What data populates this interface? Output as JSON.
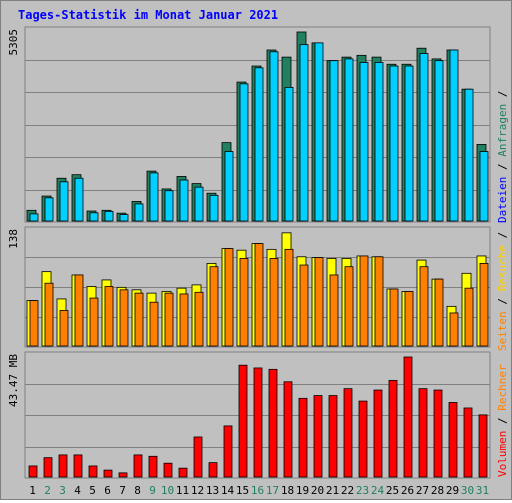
{
  "chart_data": [
    {
      "type": "bar",
      "title": "Tages-Statistik im Monat Januar 2021",
      "categories": [
        "1",
        "2",
        "3",
        "4",
        "5",
        "6",
        "7",
        "8",
        "9",
        "10",
        "11",
        "12",
        "13",
        "14",
        "15",
        "16",
        "17",
        "18",
        "19",
        "20",
        "21",
        "22",
        "23",
        "24",
        "25",
        "26",
        "27",
        "28",
        "29",
        "30",
        "31"
      ],
      "weekend_days": [
        "2",
        "3",
        "9",
        "10",
        "16",
        "17",
        "23",
        "24",
        "30",
        "31"
      ],
      "ylim": [
        0,
        5305
      ],
      "ylabel": "5305",
      "right_label": [
        "Anfragen",
        "Dateien"
      ],
      "series": [
        {
          "name": "Anfragen",
          "color": "#208060",
          "values": [
            300,
            700,
            1200,
            1300,
            280,
            300,
            220,
            550,
            1400,
            900,
            1250,
            1050,
            780,
            2200,
            3900,
            4350,
            4800,
            4600,
            5305,
            5000,
            4500,
            4600,
            4650,
            4600,
            4400,
            4400,
            4850,
            4550,
            4800,
            3700,
            2150
          ]
        },
        {
          "name": "Dateien",
          "color": "#00d0ff",
          "values": [
            200,
            650,
            1100,
            1200,
            230,
            270,
            180,
            480,
            1350,
            850,
            1150,
            950,
            720,
            1950,
            3850,
            4300,
            4750,
            3750,
            4950,
            5000,
            4500,
            4550,
            4450,
            4450,
            4350,
            4350,
            4700,
            4500,
            4800,
            3700,
            1950
          ]
        }
      ]
    },
    {
      "type": "bar",
      "ylim": [
        0,
        138
      ],
      "ylabel": "138",
      "right_label": [
        "Besuche",
        "Seiten"
      ],
      "series": [
        {
          "name": "Besuche",
          "color": "#ffff00",
          "values": [
            55,
            90,
            57,
            86,
            72,
            80,
            71,
            68,
            64,
            66,
            70,
            74,
            100,
            118,
            116,
            124,
            117,
            137,
            108,
            107,
            106,
            106,
            109,
            108,
            69,
            66,
            104,
            81,
            48,
            88,
            109
          ]
        },
        {
          "name": "Seiten",
          "color": "#ff8000",
          "values": [
            55,
            76,
            43,
            86,
            58,
            72,
            68,
            64,
            53,
            64,
            63,
            65,
            96,
            118,
            106,
            124,
            106,
            117,
            98,
            107,
            86,
            96,
            109,
            108,
            69,
            66,
            96,
            81,
            40,
            70,
            100
          ]
        }
      ]
    },
    {
      "type": "bar",
      "ylim": [
        0,
        43.47
      ],
      "ylabel": "43.47 MB",
      "right_label": [
        "Volumen",
        "Rechner"
      ],
      "series": [
        {
          "name": "Volumen",
          "color": "#ff0000",
          "values": [
            4,
            7,
            8,
            8,
            4,
            2.5,
            1.5,
            8,
            7.5,
            5,
            3.2,
            14.5,
            5.2,
            18.5,
            40.5,
            39.5,
            39,
            34.5,
            28.5,
            29.5,
            29.5,
            32,
            27.5,
            31.5,
            35,
            43.47,
            32,
            31.5,
            27,
            25,
            22.5
          ]
        }
      ]
    }
  ]
}
